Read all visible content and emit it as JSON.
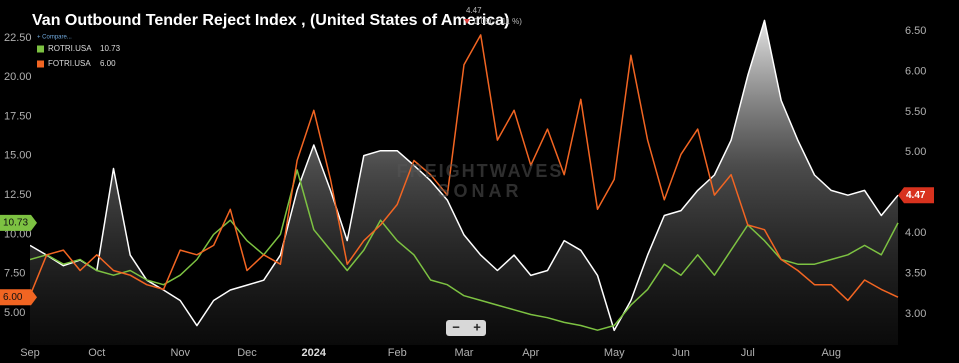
{
  "chart_data": {
    "type": "area-line",
    "title": "Van Outbound Tender Reject Index , (United States of America)",
    "compare": "+ Compare...",
    "header_value": "4.47",
    "header_change": "0.05(-1.11 %)",
    "watermark": [
      "FREIGHTWAVES",
      "SONAR"
    ],
    "zoom": [
      "−",
      "+"
    ],
    "categories": [
      "Sep",
      null,
      null,
      null,
      "Oct",
      null,
      null,
      null,
      null,
      "Nov",
      null,
      null,
      null,
      "Dec",
      null,
      null,
      null,
      "2024",
      null,
      null,
      null,
      null,
      "Feb",
      null,
      null,
      null,
      "Mar",
      null,
      null,
      null,
      "Apr",
      null,
      null,
      null,
      null,
      "May",
      null,
      null,
      null,
      "Jun",
      null,
      null,
      null,
      "Jul",
      null,
      null,
      null,
      null,
      "Aug",
      null,
      null,
      null,
      null
    ],
    "series": [
      {
        "color": "#ffffff",
        "axis": "y2",
        "fill": true,
        "values": [
          3.85,
          3.73,
          3.6,
          3.67,
          3.54,
          4.8,
          3.73,
          3.42,
          3.3,
          3.17,
          2.86,
          3.17,
          3.3,
          3.36,
          3.42,
          3.73,
          4.53,
          5.09,
          4.53,
          3.91,
          4.96,
          5.02,
          5.02,
          4.84,
          4.65,
          4.41,
          3.98,
          3.73,
          3.54,
          3.73,
          3.48,
          3.54,
          3.91,
          3.79,
          3.48,
          2.8,
          3.17,
          3.73,
          4.22,
          4.28,
          4.53,
          4.72,
          5.15,
          5.95,
          6.63,
          5.64,
          5.15,
          4.72,
          4.53,
          4.47,
          4.53,
          4.22,
          4.47
        ]
      },
      {
        "name": "ROTRI.USA",
        "last_label": "10.73",
        "color": "#7dc242",
        "values": [
          8.4,
          8.7,
          8.1,
          8.4,
          7.7,
          7.4,
          7.7,
          7.1,
          6.8,
          7.4,
          8.4,
          10.0,
          10.9,
          9.6,
          8.7,
          10.0,
          14.1,
          10.3,
          9.0,
          7.7,
          9.0,
          10.9,
          9.6,
          8.7,
          7.1,
          6.8,
          6.1,
          5.8,
          5.5,
          5.2,
          4.9,
          4.7,
          4.4,
          4.2,
          3.9,
          4.2,
          5.5,
          6.5,
          8.1,
          7.4,
          8.7,
          7.4,
          9.0,
          10.6,
          9.6,
          8.4,
          8.1,
          8.1,
          8.4,
          8.7,
          9.3,
          8.7,
          10.73
        ]
      },
      {
        "name": "FOTRI.USA",
        "last_label": "6.00",
        "color": "#f26522",
        "values": [
          6.1,
          8.7,
          9.0,
          7.7,
          8.7,
          7.7,
          7.4,
          6.8,
          6.5,
          9.0,
          8.7,
          9.3,
          11.6,
          7.7,
          8.7,
          8.1,
          14.7,
          17.9,
          13.5,
          8.1,
          9.6,
          10.6,
          11.9,
          14.7,
          13.8,
          12.5,
          20.8,
          22.7,
          16.0,
          17.9,
          14.4,
          16.7,
          13.8,
          18.6,
          11.6,
          13.5,
          21.4,
          16.0,
          12.2,
          15.1,
          16.7,
          12.5,
          13.8,
          10.6,
          10.3,
          8.4,
          7.7,
          6.8,
          6.8,
          5.8,
          7.1,
          6.5,
          6
        ]
      }
    ],
    "ylim": [
      2.96,
      24.6
    ],
    "yticks": [
      {
        "value": 5,
        "label": "5.00"
      },
      {
        "value": 7.5,
        "label": "7.50"
      },
      {
        "value": 10,
        "label": "10.00"
      },
      {
        "value": 12.5,
        "label": "12.50"
      },
      {
        "value": 15,
        "label": "15.00"
      },
      {
        "value": 17.5,
        "label": "17.50"
      },
      {
        "value": 20,
        "label": "20.00"
      },
      {
        "value": 22.5,
        "label": "22.50"
      }
    ],
    "y2lim": [
      2.62,
      6.82
    ],
    "y2ticks": [
      {
        "value": 3,
        "label": "3.00"
      },
      {
        "value": 3.5,
        "label": "3.50"
      },
      {
        "value": 4,
        "label": "4.00"
      },
      {
        "value": 4.5,
        "label": "4.50"
      },
      {
        "value": 5,
        "label": "5.00"
      },
      {
        "value": 5.5,
        "label": "5.50"
      },
      {
        "value": 6,
        "label": "6.00"
      },
      {
        "value": 6.5,
        "label": "6.50"
      }
    ],
    "grid": false
  }
}
